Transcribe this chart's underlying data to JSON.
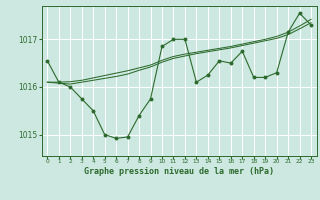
{
  "title": "Graphe pression niveau de la mer (hPa)",
  "xlabel_ticks": [
    0,
    1,
    2,
    3,
    4,
    5,
    6,
    7,
    8,
    9,
    10,
    11,
    12,
    13,
    14,
    15,
    16,
    17,
    18,
    19,
    20,
    21,
    22,
    23
  ],
  "yticks": [
    1015,
    1016,
    1017
  ],
  "ylim": [
    1014.55,
    1017.7
  ],
  "xlim": [
    -0.5,
    23.5
  ],
  "bg_color": "#cce8e0",
  "grid_color": "#ffffff",
  "line_color": "#2d6a2d",
  "series_main": [
    1016.55,
    1016.1,
    1016.0,
    1015.75,
    1015.5,
    1015.0,
    1014.92,
    1014.95,
    1015.4,
    1015.75,
    1016.85,
    1017.0,
    1017.0,
    1016.1,
    1016.25,
    1016.55,
    1016.5,
    1016.75,
    1016.2,
    1016.2,
    1016.3,
    1017.15,
    1017.55,
    1017.3
  ],
  "series_trend1": [
    1016.1,
    1016.08,
    1016.06,
    1016.1,
    1016.14,
    1016.18,
    1016.22,
    1016.27,
    1016.35,
    1016.42,
    1016.52,
    1016.6,
    1016.65,
    1016.7,
    1016.74,
    1016.78,
    1016.82,
    1016.87,
    1016.92,
    1016.97,
    1017.02,
    1017.1,
    1017.22,
    1017.35
  ],
  "series_trend2": [
    1016.1,
    1016.1,
    1016.11,
    1016.14,
    1016.19,
    1016.24,
    1016.29,
    1016.34,
    1016.4,
    1016.46,
    1016.56,
    1016.64,
    1016.69,
    1016.73,
    1016.77,
    1016.81,
    1016.85,
    1016.9,
    1016.95,
    1017.0,
    1017.06,
    1017.15,
    1017.28,
    1017.42
  ]
}
